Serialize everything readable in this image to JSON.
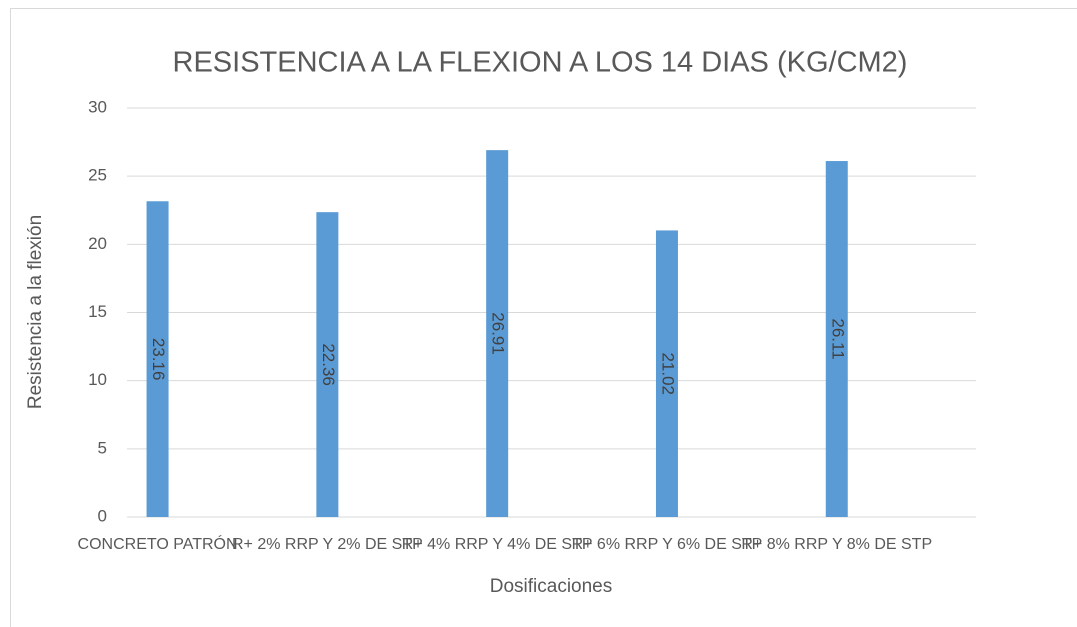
{
  "chart_data": {
    "type": "bar",
    "title": "RESISTENCIA A LA FLEXION A LOS 14 DIAS (KG/CM2)",
    "x_label": "Dosificaciones",
    "y_label": "Resistencia a la flexión",
    "categories": [
      "CONCRETO PATRÓN",
      "R+ 2% RRP Y 2% DE STP",
      "R+ 4% RRP Y 4% DE STP",
      "R+ 6% RRP Y 6% DE STP",
      "R+ 8% RRP Y 8% DE STP"
    ],
    "values": [
      23.16,
      22.36,
      26.91,
      21.02,
      26.11
    ],
    "color": "#5b9bd5",
    "ylim": [
      0,
      30
    ],
    "yticks": [
      0,
      5,
      10,
      15,
      20,
      25,
      30
    ],
    "grid": true
  }
}
